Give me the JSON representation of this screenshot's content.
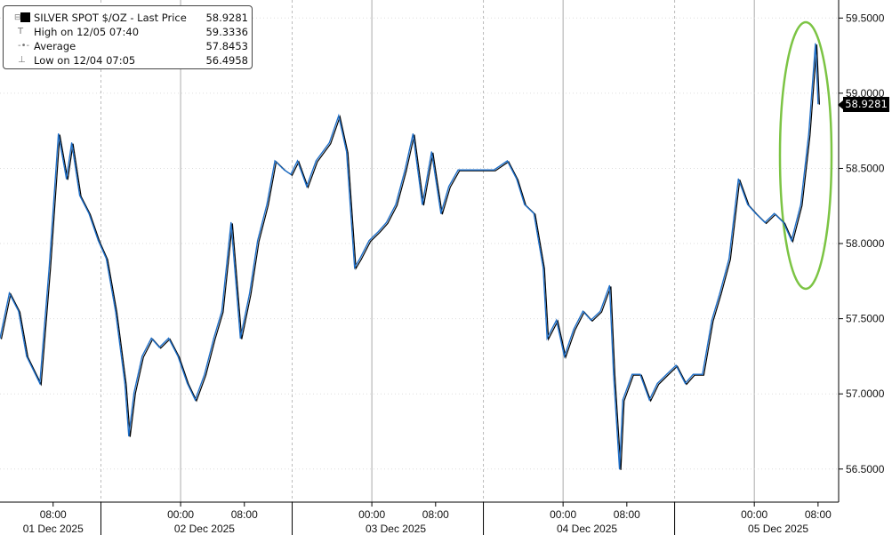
{
  "chart_data": {
    "type": "line",
    "legend": {
      "series_name": "SILVER SPOT $/OZ - Last Price",
      "last_price": "58.9281",
      "high_label": "High on 12/05 07:40",
      "high": "59.3336",
      "average_label": "Average",
      "average": "57.8453",
      "low_label": "Low on 12/04 07:05",
      "low": "56.4958",
      "placement": "top-left"
    },
    "last_price_label": "58.9281",
    "series_color": "#1f6fc8",
    "annotation": {
      "shape": "ellipse",
      "color": "#7cc444",
      "around": "2025-12-05 rally"
    },
    "xlim": [
      "2025-12-01T01:20",
      "2025-12-05T10:35"
    ],
    "ylim": [
      56.28,
      59.62
    ],
    "yticks": [
      "56.5000",
      "57.0000",
      "57.5000",
      "58.0000",
      "58.5000",
      "59.0000",
      "59.5000"
    ],
    "xticks": [
      {
        "t": "2025-12-01T08:00",
        "label": "08:00"
      },
      {
        "t": "2025-12-02T00:00",
        "label": "00:00"
      },
      {
        "t": "2025-12-02T08:00",
        "label": "08:00"
      },
      {
        "t": "2025-12-03T00:00",
        "label": "00:00"
      },
      {
        "t": "2025-12-03T08:00",
        "label": "08:00"
      },
      {
        "t": "2025-12-04T00:00",
        "label": "00:00"
      },
      {
        "t": "2025-12-04T08:00",
        "label": "08:00"
      },
      {
        "t": "2025-12-05T00:00",
        "label": "00:00"
      },
      {
        "t": "2025-12-05T08:00",
        "label": "08:00"
      }
    ],
    "date_labels": [
      "01 Dec 2025",
      "02 Dec 2025",
      "03 Dec 2025",
      "04 Dec 2025",
      "05 Dec 2025"
    ],
    "points": [
      [
        "2025-12-01T01:20",
        57.37
      ],
      [
        "2025-12-01T02:30",
        57.67
      ],
      [
        "2025-12-01T03:40",
        57.55
      ],
      [
        "2025-12-01T04:40",
        57.25
      ],
      [
        "2025-12-01T06:20",
        57.07
      ],
      [
        "2025-12-01T07:30",
        57.84
      ],
      [
        "2025-12-01T08:40",
        58.73
      ],
      [
        "2025-12-01T09:40",
        58.43
      ],
      [
        "2025-12-01T10:20",
        58.67
      ],
      [
        "2025-12-01T11:20",
        58.32
      ],
      [
        "2025-12-01T12:30",
        58.2
      ],
      [
        "2025-12-01T13:40",
        58.02
      ],
      [
        "2025-12-01T14:40",
        57.9
      ],
      [
        "2025-12-01T15:50",
        57.55
      ],
      [
        "2025-12-01T17:00",
        57.07
      ],
      [
        "2025-12-01T17:30",
        56.72
      ],
      [
        "2025-12-01T18:10",
        57.01
      ],
      [
        "2025-12-01T19:10",
        57.25
      ],
      [
        "2025-12-01T20:20",
        57.37
      ],
      [
        "2025-12-01T21:20",
        57.31
      ],
      [
        "2025-12-01T22:30",
        57.37
      ],
      [
        "2025-12-01T23:40",
        57.25
      ],
      [
        "2025-12-02T00:50",
        57.07
      ],
      [
        "2025-12-02T01:50",
        56.96
      ],
      [
        "2025-12-02T03:00",
        57.13
      ],
      [
        "2025-12-02T04:10",
        57.37
      ],
      [
        "2025-12-02T05:10",
        57.55
      ],
      [
        "2025-12-02T06:20",
        58.14
      ],
      [
        "2025-12-02T07:30",
        57.37
      ],
      [
        "2025-12-02T08:40",
        57.67
      ],
      [
        "2025-12-02T09:40",
        58.02
      ],
      [
        "2025-12-02T10:50",
        58.26
      ],
      [
        "2025-12-02T11:50",
        58.55
      ],
      [
        "2025-12-02T13:00",
        58.49
      ],
      [
        "2025-12-02T13:50",
        58.46
      ],
      [
        "2025-12-02T14:40",
        58.55
      ],
      [
        "2025-12-02T15:50",
        58.38
      ],
      [
        "2025-12-02T17:00",
        58.55
      ],
      [
        "2025-12-02T18:40",
        58.67
      ],
      [
        "2025-12-02T19:50",
        58.85
      ],
      [
        "2025-12-02T20:50",
        58.61
      ],
      [
        "2025-12-02T21:50",
        57.84
      ],
      [
        "2025-12-02T22:30",
        57.9
      ],
      [
        "2025-12-02T23:40",
        58.02
      ],
      [
        "2025-12-03T00:50",
        58.08
      ],
      [
        "2025-12-03T01:50",
        58.14
      ],
      [
        "2025-12-03T03:00",
        58.26
      ],
      [
        "2025-12-03T04:10",
        58.49
      ],
      [
        "2025-12-03T05:10",
        58.73
      ],
      [
        "2025-12-03T06:20",
        58.26
      ],
      [
        "2025-12-03T07:30",
        58.61
      ],
      [
        "2025-12-03T08:40",
        58.2
      ],
      [
        "2025-12-03T09:40",
        58.38
      ],
      [
        "2025-12-03T10:50",
        58.49
      ],
      [
        "2025-12-03T11:50",
        58.49
      ],
      [
        "2025-12-03T13:40",
        58.49
      ],
      [
        "2025-12-03T15:20",
        58.49
      ],
      [
        "2025-12-03T17:00",
        58.55
      ],
      [
        "2025-12-03T18:10",
        58.43
      ],
      [
        "2025-12-03T19:10",
        58.26
      ],
      [
        "2025-12-03T20:20",
        58.2
      ],
      [
        "2025-12-03T21:30",
        57.84
      ],
      [
        "2025-12-03T22:00",
        57.37
      ],
      [
        "2025-12-03T23:10",
        57.49
      ],
      [
        "2025-12-04T00:10",
        57.25
      ],
      [
        "2025-12-04T01:20",
        57.43
      ],
      [
        "2025-12-04T02:30",
        57.55
      ],
      [
        "2025-12-04T03:30",
        57.49
      ],
      [
        "2025-12-04T04:40",
        57.55
      ],
      [
        "2025-12-04T05:50",
        57.72
      ],
      [
        "2025-12-04T06:20",
        57.13
      ],
      [
        "2025-12-04T07:05",
        56.5
      ],
      [
        "2025-12-04T07:30",
        56.96
      ],
      [
        "2025-12-04T08:40",
        57.13
      ],
      [
        "2025-12-04T09:40",
        57.13
      ],
      [
        "2025-12-04T10:50",
        56.96
      ],
      [
        "2025-12-04T11:50",
        57.07
      ],
      [
        "2025-12-04T13:00",
        57.13
      ],
      [
        "2025-12-04T14:10",
        57.19
      ],
      [
        "2025-12-04T15:20",
        57.07
      ],
      [
        "2025-12-04T16:20",
        57.13
      ],
      [
        "2025-12-04T17:30",
        57.13
      ],
      [
        "2025-12-04T18:40",
        57.49
      ],
      [
        "2025-12-04T19:40",
        57.67
      ],
      [
        "2025-12-04T20:50",
        57.9
      ],
      [
        "2025-12-04T22:00",
        58.43
      ],
      [
        "2025-12-04T23:10",
        58.26
      ],
      [
        "2025-12-05T00:10",
        58.2
      ],
      [
        "2025-12-05T01:20",
        58.14
      ],
      [
        "2025-12-05T02:30",
        58.2
      ],
      [
        "2025-12-05T03:40",
        58.14
      ],
      [
        "2025-12-05T04:40",
        58.02
      ],
      [
        "2025-12-05T05:50",
        58.26
      ],
      [
        "2025-12-05T06:50",
        58.73
      ],
      [
        "2025-12-05T07:40",
        59.33
      ],
      [
        "2025-12-05T08:00",
        58.93
      ]
    ]
  }
}
